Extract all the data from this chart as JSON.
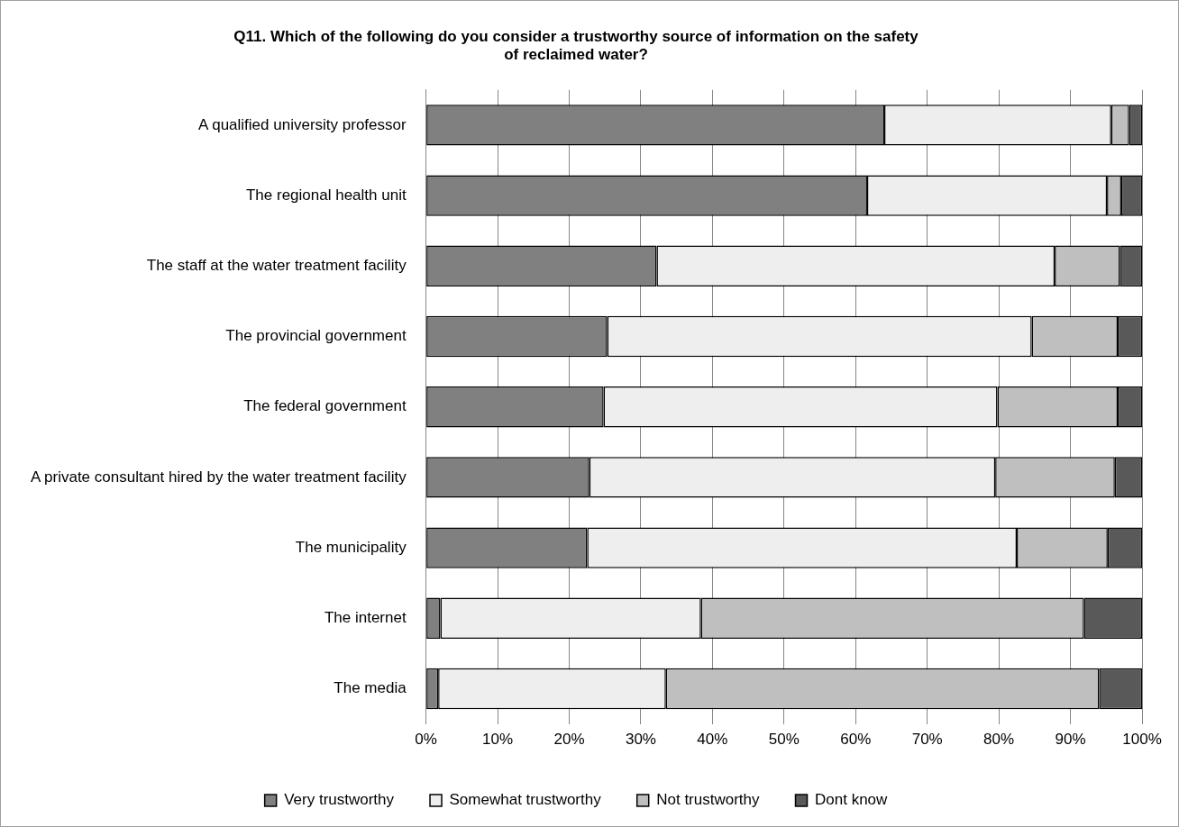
{
  "chart_data": {
    "type": "bar",
    "orientation": "horizontal",
    "stacked": true,
    "title": "Q11. Which of the following do you consider a trustworthy source of information on the safety of reclaimed water?",
    "categories": [
      "A qualified university professor",
      "The regional health unit",
      "The staff at the water treatment facility",
      "The provincial government",
      "The federal government",
      "A private consultant hired by the water treatment facility",
      "The municipality",
      "The internet",
      "The media"
    ],
    "series": [
      {
        "name": "Very trustworthy",
        "color": "#808080",
        "values": [
          64,
          61.6,
          32.2,
          25.3,
          24.8,
          22.8,
          22.5,
          2,
          1.7
        ]
      },
      {
        "name": "Somewhat trustworthy",
        "color": "#eeeeee",
        "values": [
          31.7,
          33.5,
          55.6,
          59.3,
          55,
          56.7,
          60,
          36.4,
          31.8
        ]
      },
      {
        "name": "Not trustworthy",
        "color": "#bfbfbf",
        "values": [
          2.5,
          2,
          9.1,
          12,
          16.8,
          16.7,
          12.7,
          53.5,
          60.5
        ]
      },
      {
        "name": "Dont know",
        "color": "#595959",
        "values": [
          1.8,
          2.9,
          3.1,
          3.4,
          3.4,
          3.8,
          4.8,
          8.1,
          6
        ]
      }
    ],
    "xlim": [
      0,
      100
    ],
    "xticks": [
      {
        "value": 0,
        "label": "0%"
      },
      {
        "value": 10,
        "label": "10%"
      },
      {
        "value": 20,
        "label": "20%"
      },
      {
        "value": 30,
        "label": "30%"
      },
      {
        "value": 40,
        "label": "40%"
      },
      {
        "value": 50,
        "label": "50%"
      },
      {
        "value": 60,
        "label": "60%"
      },
      {
        "value": 70,
        "label": "70%"
      },
      {
        "value": 80,
        "label": "80%"
      },
      {
        "value": 90,
        "label": "90%"
      },
      {
        "value": 100,
        "label": "100%"
      }
    ],
    "grid": "x",
    "legend": "bottom"
  }
}
